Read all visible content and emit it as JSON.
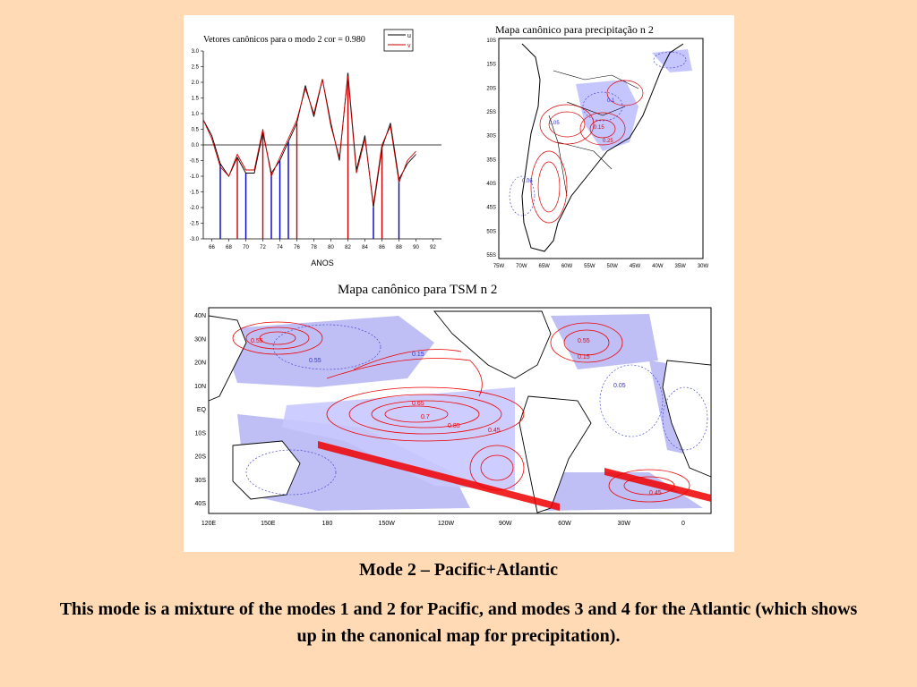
{
  "slide": {
    "caption_title": "Mode 2 – Pacific+Atlantic",
    "caption_body": "This mode is a mixture of the modes 1 and 2 for Pacific, and modes 3 and 4 for the Atlantic (which shows up in the canonical map for precipitation).",
    "background_color": "#FFDAB4"
  },
  "chart_data": {
    "type": "line",
    "title": "Vetores canônicos para o modo 2   cor = 0.980",
    "xlabel": "ANOS",
    "ylabel": "",
    "xlim": [
      65,
      93
    ],
    "ylim": [
      -3.0,
      3.0
    ],
    "x_ticks": [
      "66",
      "68",
      "70",
      "72",
      "74",
      "76",
      "78",
      "80",
      "82",
      "84",
      "86",
      "88",
      "90",
      "92"
    ],
    "y_ticks": [
      "3.0",
      "2.5",
      "2.0",
      "1.5",
      "1.0",
      "0.5",
      "0.0",
      "-0.5",
      "-1.0",
      "-1.5",
      "-2.0",
      "-2.5",
      "-3.0"
    ],
    "grid": false,
    "legend_position": "top-right",
    "series": [
      {
        "name": "u",
        "color": "#000000",
        "x": [
          65,
          66,
          67,
          68,
          69,
          70,
          71,
          72,
          73,
          74,
          75,
          76,
          77,
          78,
          79,
          80,
          81,
          82,
          83,
          84,
          85,
          86,
          87,
          88,
          89,
          90
        ],
        "values": [
          0.8,
          0.3,
          -0.6,
          -1.0,
          -0.4,
          -0.9,
          -0.9,
          0.4,
          -0.9,
          -0.5,
          0.1,
          0.7,
          1.9,
          0.9,
          2.1,
          0.7,
          -0.5,
          2.3,
          -0.8,
          0.3,
          -2.0,
          -0.1,
          0.7,
          -1.1,
          -0.6,
          -0.3
        ]
      },
      {
        "name": "v",
        "color": "#cc0000",
        "x": [
          65,
          66,
          67,
          68,
          69,
          70,
          71,
          72,
          73,
          74,
          75,
          76,
          77,
          78,
          79,
          80,
          81,
          82,
          83,
          84,
          85,
          86,
          87,
          88,
          89,
          90
        ],
        "values": [
          0.8,
          0.2,
          -0.7,
          -1.0,
          -0.3,
          -0.8,
          -0.8,
          0.5,
          -1.0,
          -0.4,
          0.2,
          0.8,
          1.8,
          1.0,
          2.1,
          0.6,
          -0.4,
          2.2,
          -0.9,
          0.2,
          -1.9,
          0.0,
          0.6,
          -1.2,
          -0.5,
          -0.2
        ]
      }
    ],
    "bars": {
      "x": [
        67,
        69,
        70,
        72,
        73,
        74,
        75,
        76,
        82,
        85,
        86,
        88
      ],
      "values": [
        -3.0,
        -3.0,
        -3.0,
        -3.0,
        -3.0,
        -3.0,
        -3.0,
        -3.0,
        -3.0,
        -3.0,
        -3.0,
        -3.0
      ],
      "colors": [
        "#0000cc",
        "#cc0000",
        "#0000cc",
        "#cc0000",
        "#0000cc",
        "#0000cc",
        "#0000cc",
        "#cc0000",
        "#cc0000",
        "#0000cc",
        "#cc0000",
        "#0000cc"
      ]
    }
  },
  "precip_map": {
    "title": "Mapa canônico para precipitação   n  2",
    "lat_labels": [
      "10S",
      "15S",
      "20S",
      "25S",
      "30S",
      "35S",
      "40S",
      "45S",
      "50S",
      "55S"
    ],
    "lon_labels": [
      "75W",
      "70W",
      "65W",
      "60W",
      "55W",
      "50W",
      "45W",
      "40W",
      "35W",
      "30W"
    ],
    "contour_labels": [
      "0.05",
      "0.1",
      "0.15",
      "0.2",
      "0.25",
      "0.05",
      "0.1",
      "0.05"
    ],
    "positive_color": "#dd0000",
    "negative_color": "#3333cc",
    "shade_color": "#b8b8ff"
  },
  "sst_map": {
    "title": "Mapa canônico para TSM   n  2",
    "lat_labels": [
      "40N",
      "30N",
      "20N",
      "10N",
      "EQ",
      "10S",
      "20S",
      "30S",
      "40S"
    ],
    "lon_labels": [
      "120E",
      "150E",
      "180",
      "150W",
      "120W",
      "90W",
      "60W",
      "30W",
      "0"
    ],
    "contour_labels": [
      "0.55",
      "0.45",
      "0.55",
      "0.15",
      "0.05",
      "0.65",
      "0.55",
      "0.85",
      "0.7",
      "0.65",
      "0.45",
      "0.55",
      "0.15",
      "0.05",
      "0.1",
      "0.25",
      "0.45",
      "0.55",
      "0.5",
      "0.15"
    ],
    "positive_color": "#ee0000",
    "negative_color": "#3333cc",
    "shade_color": "#b4b4f4"
  }
}
